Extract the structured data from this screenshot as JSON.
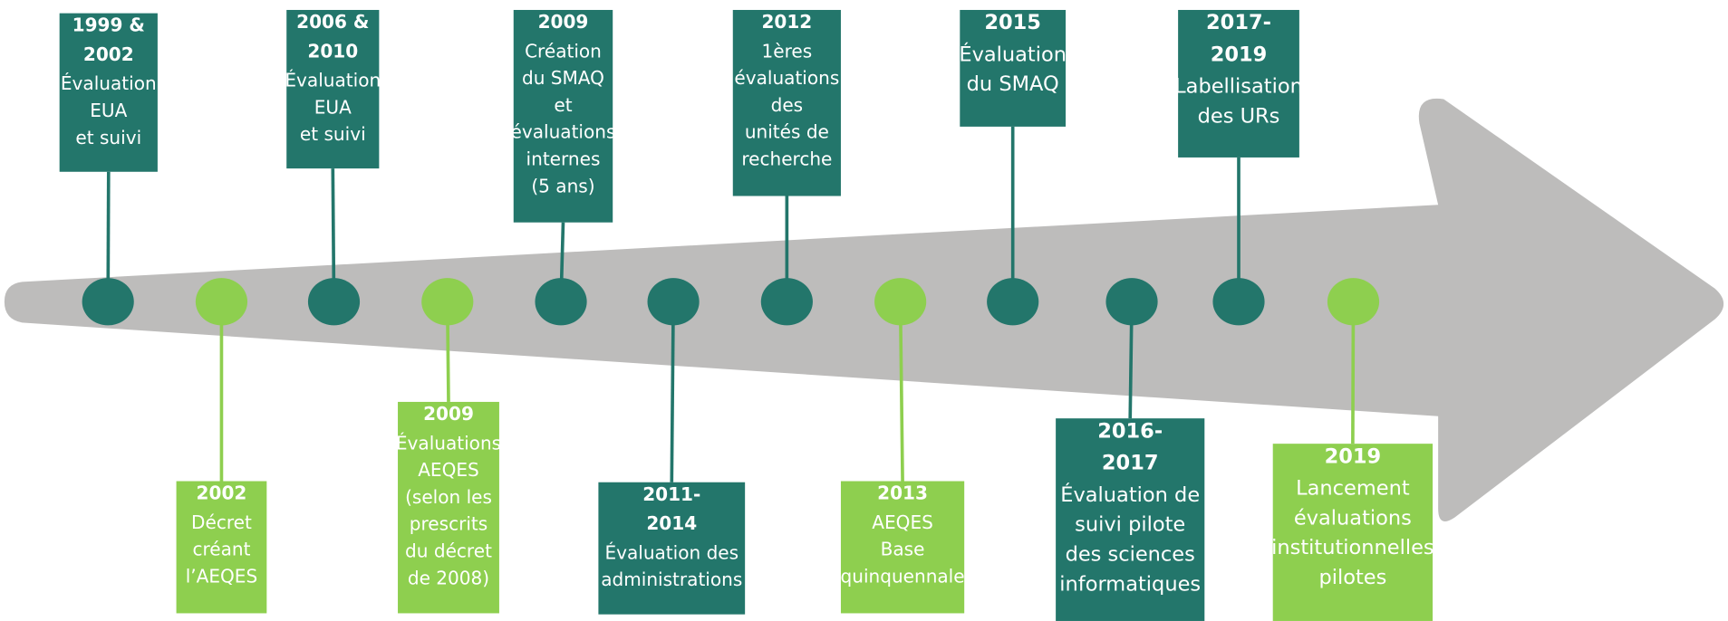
{
  "timeline": {
    "events": [
      {
        "position": "top",
        "color": "#23766b",
        "year": [
          "1999 &",
          "2002"
        ],
        "lines": [
          "Évaluation",
          "EUA",
          "et suivi"
        ]
      },
      {
        "position": "bottom",
        "color": "#8ecf4f",
        "year": [
          "2002"
        ],
        "lines": [
          "Décret",
          "créant",
          "l’AEQES"
        ]
      },
      {
        "position": "top",
        "color": "#23766b",
        "year": [
          "2006 &",
          "2010"
        ],
        "lines": [
          "Évaluation",
          "EUA",
          "et suivi"
        ]
      },
      {
        "position": "bottom",
        "color": "#8ecf4f",
        "year": [
          "2009"
        ],
        "lines": [
          "Évaluations",
          "AEQES",
          "(selon les",
          "prescrits",
          "du décret",
          "de 2008)"
        ]
      },
      {
        "position": "top",
        "color": "#23766b",
        "year": [
          "2009"
        ],
        "lines": [
          "Création",
          "du SMAQ",
          "et",
          "évaluations",
          "internes",
          "(5 ans)"
        ]
      },
      {
        "position": "bottom",
        "color": "#23766b",
        "year": [
          "2011-",
          "2014"
        ],
        "lines": [
          "Évaluation des",
          "administrations"
        ]
      },
      {
        "position": "top",
        "color": "#23766b",
        "year": [
          "2012"
        ],
        "lines": [
          "1ères",
          "évaluations",
          "des",
          "unités de",
          "recherche"
        ]
      },
      {
        "position": "bottom",
        "color": "#8ecf4f",
        "year": [
          "2013"
        ],
        "lines": [
          "AEQES",
          "Base",
          "quinquennale"
        ]
      },
      {
        "position": "top",
        "color": "#23766b",
        "year": [
          "2015"
        ],
        "lines": [
          "Évaluation",
          "du SMAQ"
        ]
      },
      {
        "position": "bottom",
        "color": "#23766b",
        "year": [
          "2016-",
          "2017"
        ],
        "lines": [
          "Évaluation de",
          "suivi pilote",
          "des sciences",
          "informatiques"
        ]
      },
      {
        "position": "top",
        "color": "#23766b",
        "year": [
          "2017-",
          "2019"
        ],
        "lines": [
          "Labellisation",
          "des URs"
        ]
      },
      {
        "position": "bottom",
        "color": "#8ecf4f",
        "year": [
          "2019"
        ],
        "lines": [
          "Lancement",
          "évaluations",
          "institutionnelles",
          "pilotes"
        ]
      }
    ]
  }
}
